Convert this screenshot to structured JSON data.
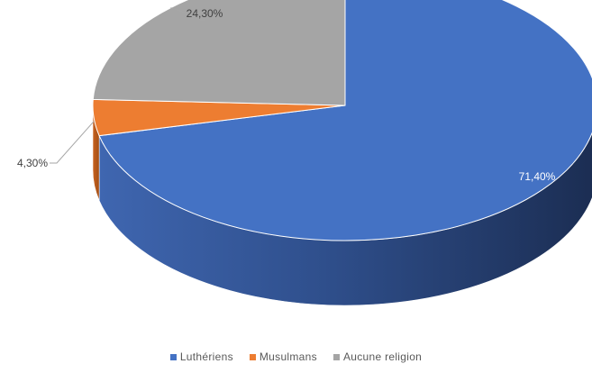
{
  "chart_data": {
    "type": "pie",
    "style": "3d",
    "title": "",
    "categories": [
      "Luthériens",
      "Musulmans",
      "Aucune religion"
    ],
    "values": [
      71.4,
      4.3,
      24.3
    ],
    "value_labels": [
      "71,40%",
      "4,30%",
      "24,30%"
    ],
    "colors": [
      "#4472C4",
      "#ED7D31",
      "#A5A5A5"
    ],
    "legend_position": "bottom"
  }
}
